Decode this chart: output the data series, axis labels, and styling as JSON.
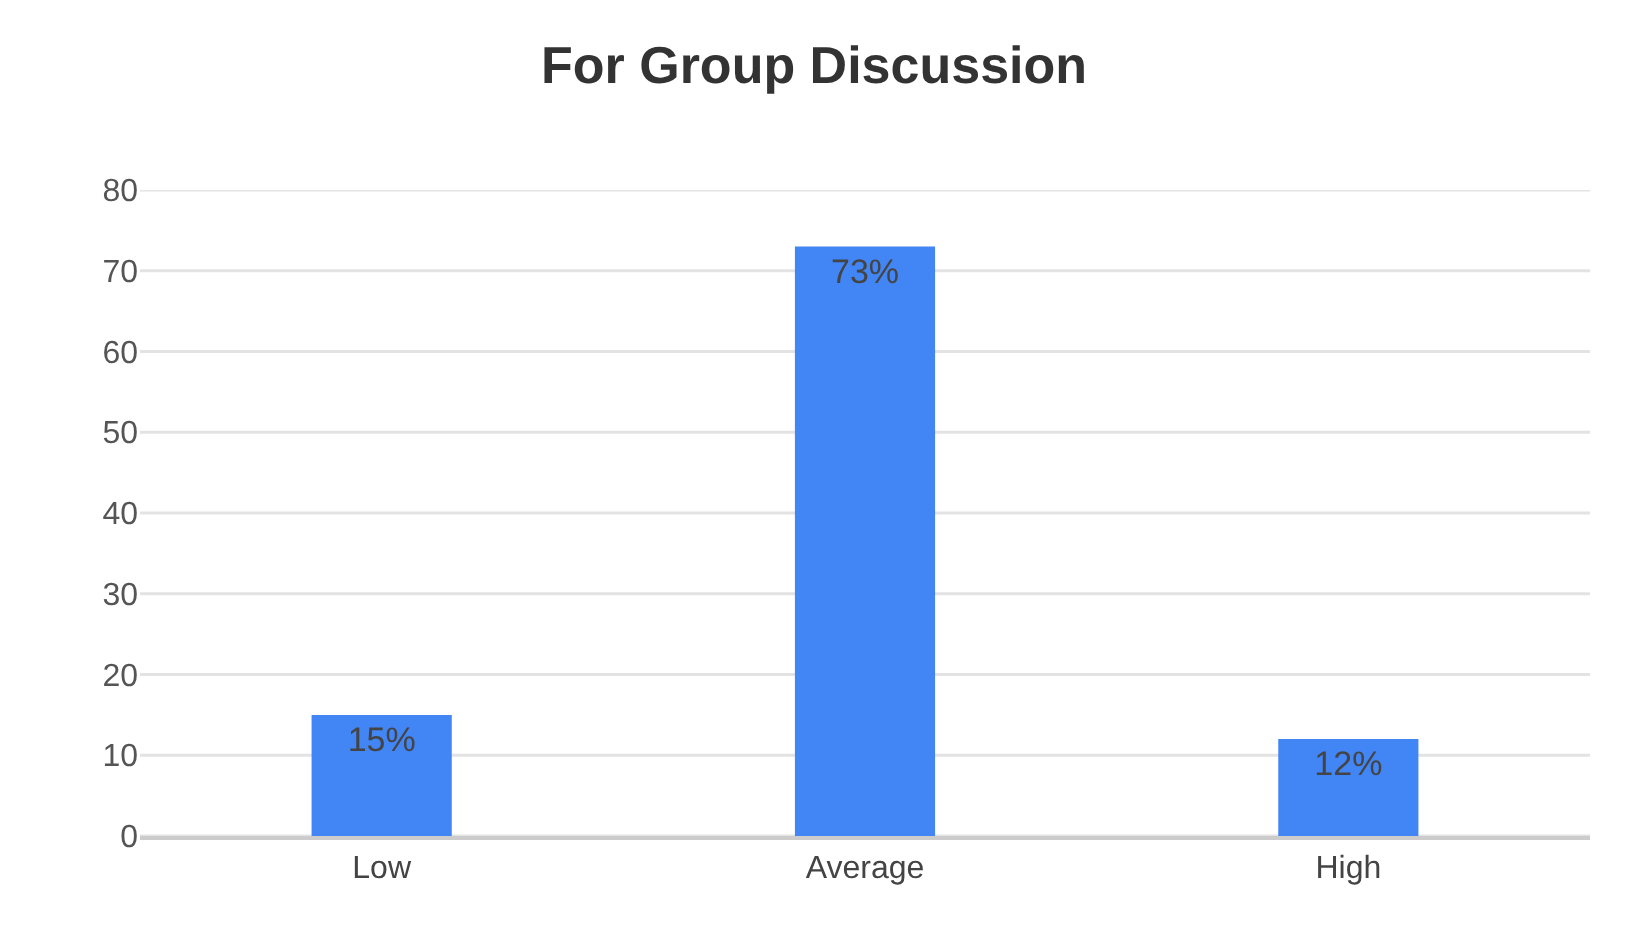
{
  "chart_data": {
    "type": "bar",
    "title": "For Group Discussion",
    "categories": [
      "Low",
      "Average",
      "High"
    ],
    "values": [
      15,
      73,
      12
    ],
    "value_labels": [
      "15%",
      "73%",
      "12%"
    ],
    "color": "#4285f4",
    "ylim": [
      0,
      80
    ],
    "yticks": [
      0,
      10,
      20,
      30,
      40,
      50,
      60,
      70,
      80
    ],
    "grid": "y"
  }
}
